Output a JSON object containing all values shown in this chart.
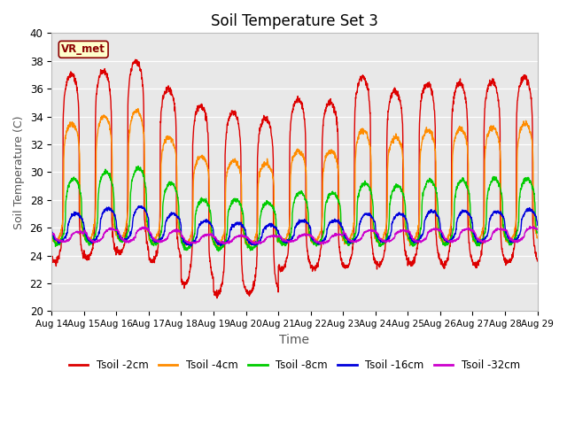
{
  "title": "Soil Temperature Set 3",
  "xlabel": "Time",
  "ylabel": "Soil Temperature (C)",
  "ylim": [
    20,
    40
  ],
  "xlim_days": [
    0,
    15
  ],
  "x_tick_labels": [
    "Aug 14",
    "Aug 15",
    "Aug 16",
    "Aug 17",
    "Aug 18",
    "Aug 19",
    "Aug 20",
    "Aug 21",
    "Aug 22",
    "Aug 23",
    "Aug 24",
    "Aug 25",
    "Aug 26",
    "Aug 27",
    "Aug 28",
    "Aug 29"
  ],
  "yticks": [
    20,
    22,
    24,
    26,
    28,
    30,
    32,
    34,
    36,
    38,
    40
  ],
  "annotation_text": "VR_met",
  "bg_color": "#e8e8e8",
  "fig_color": "#ffffff",
  "grid_color": "#ffffff",
  "lines": [
    {
      "label": "Tsoil -2cm",
      "color": "#dd0000"
    },
    {
      "label": "Tsoil -4cm",
      "color": "#ff8c00"
    },
    {
      "label": "Tsoil -8cm",
      "color": "#00cc00"
    },
    {
      "label": "Tsoil -16cm",
      "color": "#0000dd"
    },
    {
      "label": "Tsoil -32cm",
      "color": "#cc00cc"
    }
  ]
}
